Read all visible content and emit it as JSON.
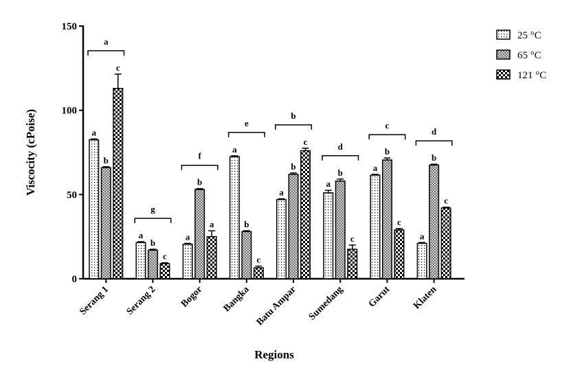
{
  "chart_data": {
    "type": "bar",
    "title": "",
    "xlabel": "Regions",
    "ylabel": "Viscocity (cPoise)",
    "ylim": [
      0,
      150
    ],
    "yticks": [
      0,
      50,
      100,
      150
    ],
    "grid": false,
    "legend_position": "top-right",
    "categories": [
      "Serang 1",
      "Serang 2",
      "Bogor",
      "Bangka",
      "Batu Ampar",
      "Sumedang",
      "Garut",
      "Klaten"
    ],
    "series": [
      {
        "name": "25 °C",
        "pattern": "dots",
        "values": [
          82.5,
          21.5,
          20.5,
          72.5,
          47,
          51,
          61.5,
          21
        ],
        "errors": [
          0.5,
          0.5,
          0.5,
          0.5,
          0.5,
          1.5,
          0.5,
          0.5
        ],
        "letters": [
          "a",
          "a",
          "a",
          "a",
          "a",
          "a",
          "a",
          "a"
        ]
      },
      {
        "name": "65 °C",
        "pattern": "crosshatch",
        "values": [
          66,
          17,
          53,
          28,
          62,
          58,
          70.5,
          67.5
        ],
        "errors": [
          0.5,
          0.5,
          0.5,
          0.5,
          0.8,
          1.2,
          1.2,
          0.5
        ],
        "letters": [
          "b",
          "b",
          "b",
          "b",
          "b",
          "b",
          "b",
          "b"
        ]
      },
      {
        "name": "121 °C",
        "pattern": "checker",
        "values": [
          113,
          9,
          25,
          6.5,
          76,
          17.5,
          29,
          42
        ],
        "errors": [
          8.5,
          0.5,
          3.5,
          1,
          1.5,
          2.5,
          0.8,
          0.5
        ],
        "letters": [
          "c",
          "c",
          "a",
          "c",
          "c",
          "c",
          "c",
          "c"
        ]
      }
    ],
    "group_letters": [
      "a",
      "g",
      "f",
      "e",
      "b",
      "d",
      "c",
      "d"
    ]
  },
  "colors": {
    "ink": "#000000",
    "background": "#ffffff"
  }
}
